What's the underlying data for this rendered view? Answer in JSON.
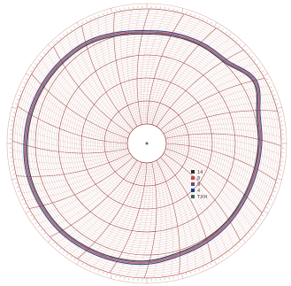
{
  "chart_data": {
    "type": "line",
    "title": "",
    "xlabel": "",
    "ylabel": "",
    "theta_unit": "hours",
    "theta_range": [
      0,
      24
    ],
    "r_range": [
      0,
      100
    ],
    "r_ticks": [
      20,
      40,
      60,
      80,
      100
    ],
    "grid": true,
    "colors": {
      "grid_ring": "#c27a70",
      "grid_radial": "#b56a64",
      "grid_major": "#a04a44",
      "paper": "#ffffff"
    },
    "legend": [
      {
        "label": "14",
        "color": "#2d2d2d"
      },
      {
        "label": "8",
        "color": "#c0504d"
      },
      {
        "label": "9",
        "color": "#6b4a8a"
      },
      {
        "label": "4",
        "color": "#1f3a7a"
      },
      {
        "label": "T.RH",
        "color": "#2e6b5e"
      }
    ],
    "annotation_lines": [
      "  ",
      "  "
    ],
    "series": [
      {
        "color": "#2d2d2d",
        "theta": [
          0,
          1,
          2,
          3,
          4,
          5,
          6,
          7,
          8,
          9,
          10,
          11,
          12,
          13,
          14,
          15,
          16,
          17,
          18,
          19,
          20,
          21,
          22,
          23,
          24
        ],
        "r": [
          78,
          79,
          80,
          81,
          90,
          82,
          80,
          79,
          79,
          80,
          81,
          82,
          85,
          86,
          87,
          88,
          88,
          88,
          87,
          86,
          85,
          84,
          83,
          80,
          78
        ]
      },
      {
        "color": "#c0504d",
        "theta": [
          0,
          1,
          2,
          3,
          4,
          5,
          6,
          7,
          8,
          9,
          10,
          11,
          12,
          13,
          14,
          15,
          16,
          17,
          18,
          19,
          20,
          21,
          22,
          23,
          24
        ],
        "r": [
          80,
          81,
          82,
          83,
          92,
          84,
          82,
          81,
          81,
          82,
          83,
          84,
          87,
          88,
          89,
          90,
          90,
          90,
          89,
          88,
          87,
          86,
          85,
          82,
          80
        ]
      },
      {
        "color": "#6b4a8a",
        "theta": [
          0,
          1,
          2,
          3,
          4,
          5,
          6,
          7,
          8,
          9,
          10,
          11,
          12,
          13,
          14,
          15,
          16,
          17,
          18,
          19,
          20,
          21,
          22,
          23,
          24
        ],
        "r": [
          79,
          80,
          81,
          82,
          91,
          83,
          81,
          80,
          80,
          81,
          82,
          83,
          86,
          87,
          88,
          89,
          89,
          89,
          88,
          87,
          86,
          85,
          84,
          81,
          79
        ]
      },
      {
        "color": "#1f3a7a",
        "theta": [
          0,
          1,
          2,
          3,
          4,
          5,
          6,
          7,
          8,
          9,
          10,
          11,
          12,
          13,
          14,
          15,
          16,
          17,
          18,
          19,
          20,
          21,
          22,
          23,
          24
        ],
        "r": [
          81,
          82,
          83,
          84,
          93,
          85,
          83,
          82,
          82,
          83,
          84,
          85,
          88,
          89,
          90,
          91,
          91,
          91,
          90,
          89,
          88,
          87,
          86,
          83,
          81
        ]
      }
    ]
  }
}
